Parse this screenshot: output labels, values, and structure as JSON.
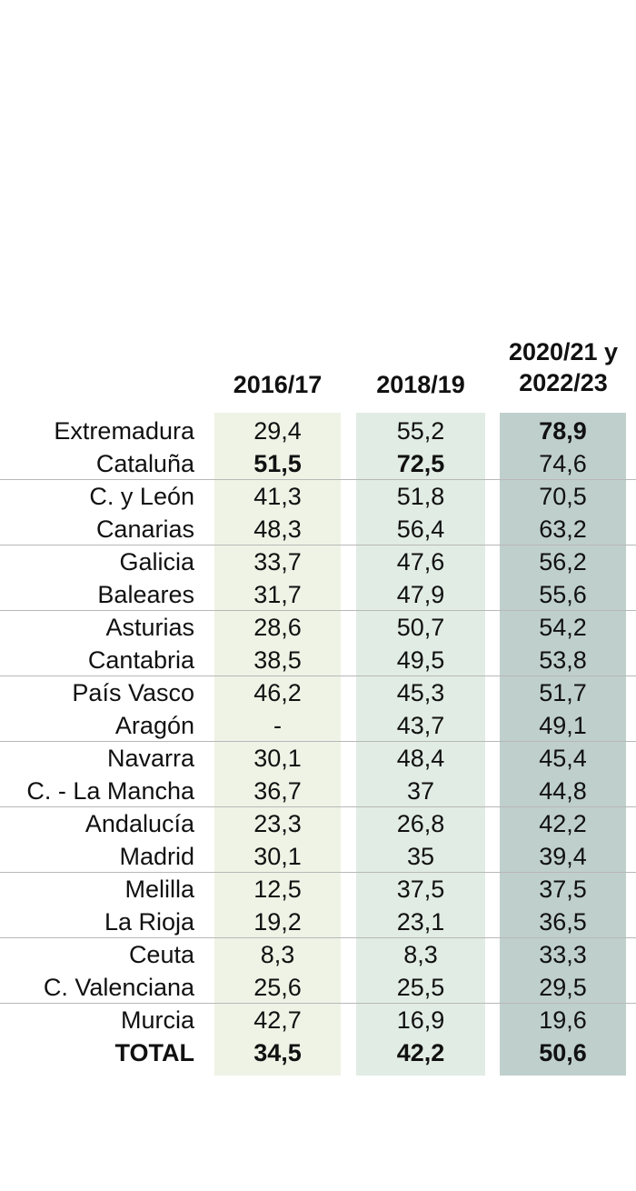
{
  "chart_data": {
    "type": "table",
    "columns": [
      "2016/17",
      "2018/19",
      "2020/21 y\n2022/23"
    ],
    "column_colors": [
      "#eef3e6",
      "#e1ece4",
      "#bfcfcc"
    ],
    "rows": [
      {
        "label": "Extremadura",
        "values": [
          "29,4",
          "55,2",
          "78,9"
        ],
        "bold": [
          false,
          false,
          true
        ]
      },
      {
        "label": "Cataluña",
        "values": [
          "51,5",
          "72,5",
          "74,6"
        ],
        "bold": [
          true,
          true,
          false
        ]
      },
      {
        "label": "C. y León",
        "values": [
          "41,3",
          "51,8",
          "70,5"
        ],
        "bold": [
          false,
          false,
          false
        ]
      },
      {
        "label": "Canarias",
        "values": [
          "48,3",
          "56,4",
          "63,2"
        ],
        "bold": [
          false,
          false,
          false
        ]
      },
      {
        "label": "Galicia",
        "values": [
          "33,7",
          "47,6",
          "56,2"
        ],
        "bold": [
          false,
          false,
          false
        ]
      },
      {
        "label": "Baleares",
        "values": [
          "31,7",
          "47,9",
          "55,6"
        ],
        "bold": [
          false,
          false,
          false
        ]
      },
      {
        "label": "Asturias",
        "values": [
          "28,6",
          "50,7",
          "54,2"
        ],
        "bold": [
          false,
          false,
          false
        ]
      },
      {
        "label": "Cantabria",
        "values": [
          "38,5",
          "49,5",
          "53,8"
        ],
        "bold": [
          false,
          false,
          false
        ]
      },
      {
        "label": "País Vasco",
        "values": [
          "46,2",
          "45,3",
          "51,7"
        ],
        "bold": [
          false,
          false,
          false
        ]
      },
      {
        "label": "Aragón",
        "values": [
          "-",
          "43,7",
          "49,1"
        ],
        "bold": [
          false,
          false,
          false
        ]
      },
      {
        "label": "Navarra",
        "values": [
          "30,1",
          "48,4",
          "45,4"
        ],
        "bold": [
          false,
          false,
          false
        ]
      },
      {
        "label": "C. - La Mancha",
        "values": [
          "36,7",
          "37",
          "44,8"
        ],
        "bold": [
          false,
          false,
          false
        ]
      },
      {
        "label": "Andalucía",
        "values": [
          "23,3",
          "26,8",
          "42,2"
        ],
        "bold": [
          false,
          false,
          false
        ]
      },
      {
        "label": "Madrid",
        "values": [
          "30,1",
          "35",
          "39,4"
        ],
        "bold": [
          false,
          false,
          false
        ]
      },
      {
        "label": "Melilla",
        "values": [
          "12,5",
          "37,5",
          "37,5"
        ],
        "bold": [
          false,
          false,
          false
        ]
      },
      {
        "label": "La Rioja",
        "values": [
          "19,2",
          "23,1",
          "36,5"
        ],
        "bold": [
          false,
          false,
          false
        ]
      },
      {
        "label": "Ceuta",
        "values": [
          "8,3",
          "8,3",
          "33,3"
        ],
        "bold": [
          false,
          false,
          false
        ]
      },
      {
        "label": "C. Valenciana",
        "values": [
          "25,6",
          "25,5",
          "29,5"
        ],
        "bold": [
          false,
          false,
          false
        ]
      },
      {
        "label": "Murcia",
        "values": [
          "42,7",
          "16,9",
          "19,6"
        ],
        "bold": [
          false,
          false,
          false
        ]
      },
      {
        "label": "TOTAL",
        "values": [
          "34,5",
          "42,2",
          "50,6"
        ],
        "bold": [
          true,
          true,
          true
        ],
        "label_bold": true
      }
    ]
  }
}
